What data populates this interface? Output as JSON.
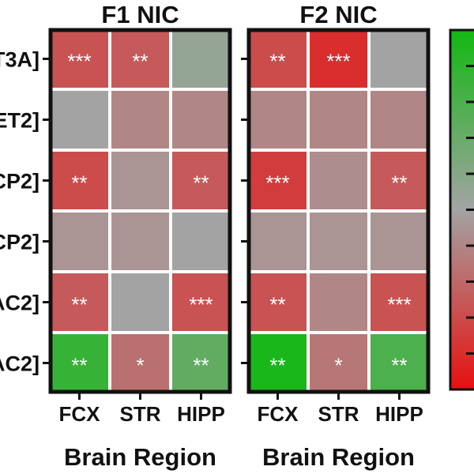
{
  "chart_data": {
    "type": "heatmap",
    "panels": [
      {
        "title": "F1 NIC",
        "xlabel": "Brain Region",
        "x": [
          "FCX",
          "STR",
          "HIPP"
        ],
        "y": [
          "T3A]",
          "ET2]",
          "CP2]",
          "CP2]",
          "AC2]",
          "AC2]"
        ],
        "values": [
          [
            -0.55,
            -0.5,
            0.1
          ],
          [
            0.0,
            -0.2,
            -0.2
          ],
          [
            -0.6,
            -0.1,
            -0.5
          ],
          [
            -0.1,
            -0.1,
            0.0
          ],
          [
            -0.5,
            0.0,
            -0.55
          ],
          [
            0.75,
            -0.35,
            0.45
          ]
        ],
        "significance": [
          [
            "***",
            "**",
            ""
          ],
          [
            "",
            "",
            ""
          ],
          [
            "**",
            "",
            "**"
          ],
          [
            "",
            "",
            ""
          ],
          [
            "**",
            "",
            "***"
          ],
          [
            "**",
            "*",
            "**"
          ]
        ]
      },
      {
        "title": "F2 NIC",
        "xlabel": "Brain Region",
        "x": [
          "FCX",
          "STR",
          "HIPP"
        ],
        "y": [
          "T3A]",
          "ET2]",
          "CP2]",
          "CP2]",
          "AC2]",
          "AC2]"
        ],
        "values": [
          [
            -0.6,
            -0.8,
            0.0
          ],
          [
            -0.2,
            -0.2,
            -0.2
          ],
          [
            -0.7,
            -0.15,
            -0.5
          ],
          [
            -0.1,
            -0.1,
            -0.1
          ],
          [
            -0.55,
            -0.2,
            -0.55
          ],
          [
            0.95,
            -0.3,
            0.6
          ]
        ],
        "significance": [
          [
            "**",
            "***",
            ""
          ],
          [
            "",
            "",
            ""
          ],
          [
            "***",
            "",
            "**"
          ],
          [
            "",
            "",
            ""
          ],
          [
            "**",
            "",
            "***"
          ],
          [
            "**",
            "*",
            "**"
          ]
        ]
      }
    ],
    "colorscale": {
      "min_color": "#e81010",
      "mid_color": "#a3a3a3",
      "max_color": "#12b812",
      "range": [
        -1,
        1
      ]
    },
    "grid": false
  }
}
